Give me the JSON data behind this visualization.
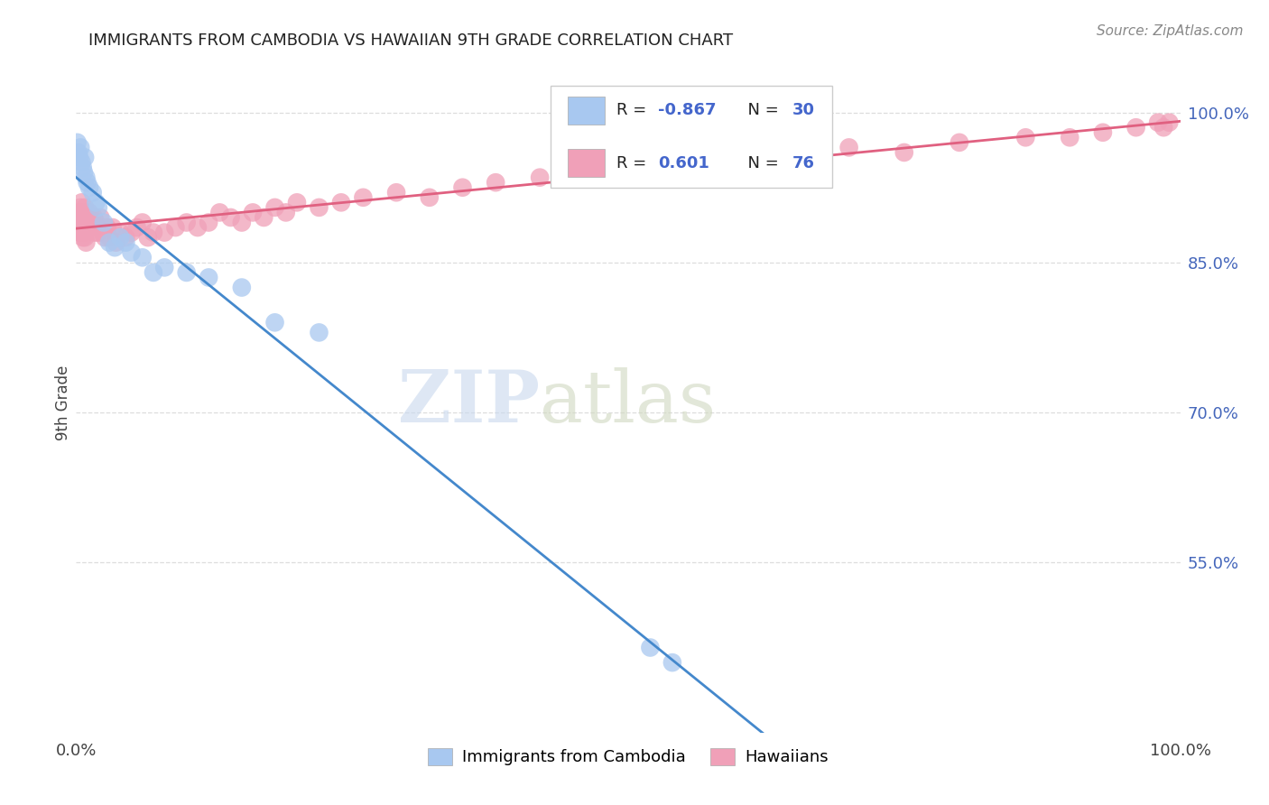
{
  "title": "IMMIGRANTS FROM CAMBODIA VS HAWAIIAN 9TH GRADE CORRELATION CHART",
  "source_text": "Source: ZipAtlas.com",
  "legend_blue_label": "Immigrants from Cambodia",
  "legend_pink_label": "Hawaiians",
  "R_blue": -0.867,
  "N_blue": 30,
  "R_pink": 0.601,
  "N_pink": 76,
  "blue_color": "#A8C8F0",
  "pink_color": "#F0A0B8",
  "blue_line_color": "#4488CC",
  "pink_line_color": "#E06080",
  "watermark_zip": "ZIP",
  "watermark_atlas": "atlas",
  "ytick_labels": [
    "100.0%",
    "85.0%",
    "70.0%",
    "55.0%"
  ],
  "ytick_values": [
    1.0,
    0.85,
    0.7,
    0.55
  ],
  "blue_scatter_x": [
    0.001,
    0.002,
    0.003,
    0.004,
    0.005,
    0.006,
    0.007,
    0.008,
    0.009,
    0.01,
    0.012,
    0.015,
    0.018,
    0.02,
    0.025,
    0.03,
    0.035,
    0.04,
    0.045,
    0.05,
    0.06,
    0.07,
    0.08,
    0.1,
    0.12,
    0.15,
    0.18,
    0.22,
    0.52,
    0.54
  ],
  "blue_scatter_y": [
    0.97,
    0.96,
    0.955,
    0.965,
    0.95,
    0.945,
    0.94,
    0.955,
    0.935,
    0.93,
    0.925,
    0.92,
    0.91,
    0.905,
    0.89,
    0.87,
    0.865,
    0.875,
    0.87,
    0.86,
    0.855,
    0.84,
    0.845,
    0.84,
    0.835,
    0.825,
    0.79,
    0.78,
    0.465,
    0.45
  ],
  "pink_scatter_x": [
    0.001,
    0.002,
    0.003,
    0.003,
    0.004,
    0.005,
    0.005,
    0.006,
    0.006,
    0.007,
    0.007,
    0.008,
    0.008,
    0.009,
    0.009,
    0.01,
    0.011,
    0.012,
    0.013,
    0.014,
    0.015,
    0.016,
    0.017,
    0.018,
    0.019,
    0.02,
    0.022,
    0.024,
    0.026,
    0.028,
    0.03,
    0.033,
    0.036,
    0.04,
    0.045,
    0.05,
    0.055,
    0.06,
    0.065,
    0.07,
    0.08,
    0.09,
    0.1,
    0.11,
    0.12,
    0.13,
    0.14,
    0.15,
    0.16,
    0.17,
    0.18,
    0.19,
    0.2,
    0.22,
    0.24,
    0.26,
    0.29,
    0.32,
    0.35,
    0.38,
    0.42,
    0.46,
    0.5,
    0.55,
    0.6,
    0.65,
    0.7,
    0.75,
    0.8,
    0.86,
    0.9,
    0.93,
    0.96,
    0.98,
    0.985,
    0.99
  ],
  "pink_scatter_y": [
    0.89,
    0.895,
    0.9,
    0.88,
    0.905,
    0.91,
    0.885,
    0.895,
    0.875,
    0.9,
    0.88,
    0.905,
    0.875,
    0.895,
    0.87,
    0.89,
    0.895,
    0.9,
    0.885,
    0.895,
    0.89,
    0.895,
    0.88,
    0.89,
    0.885,
    0.88,
    0.895,
    0.88,
    0.875,
    0.885,
    0.875,
    0.885,
    0.87,
    0.88,
    0.875,
    0.88,
    0.885,
    0.89,
    0.875,
    0.88,
    0.88,
    0.885,
    0.89,
    0.885,
    0.89,
    0.9,
    0.895,
    0.89,
    0.9,
    0.895,
    0.905,
    0.9,
    0.91,
    0.905,
    0.91,
    0.915,
    0.92,
    0.915,
    0.925,
    0.93,
    0.935,
    0.94,
    0.945,
    0.95,
    0.955,
    0.96,
    0.965,
    0.96,
    0.97,
    0.975,
    0.975,
    0.98,
    0.985,
    0.99,
    0.985,
    0.99
  ],
  "xlim": [
    0.0,
    1.0
  ],
  "ylim": [
    0.38,
    1.04
  ],
  "grid_color": "#DDDDDD",
  "background_color": "#FFFFFF"
}
